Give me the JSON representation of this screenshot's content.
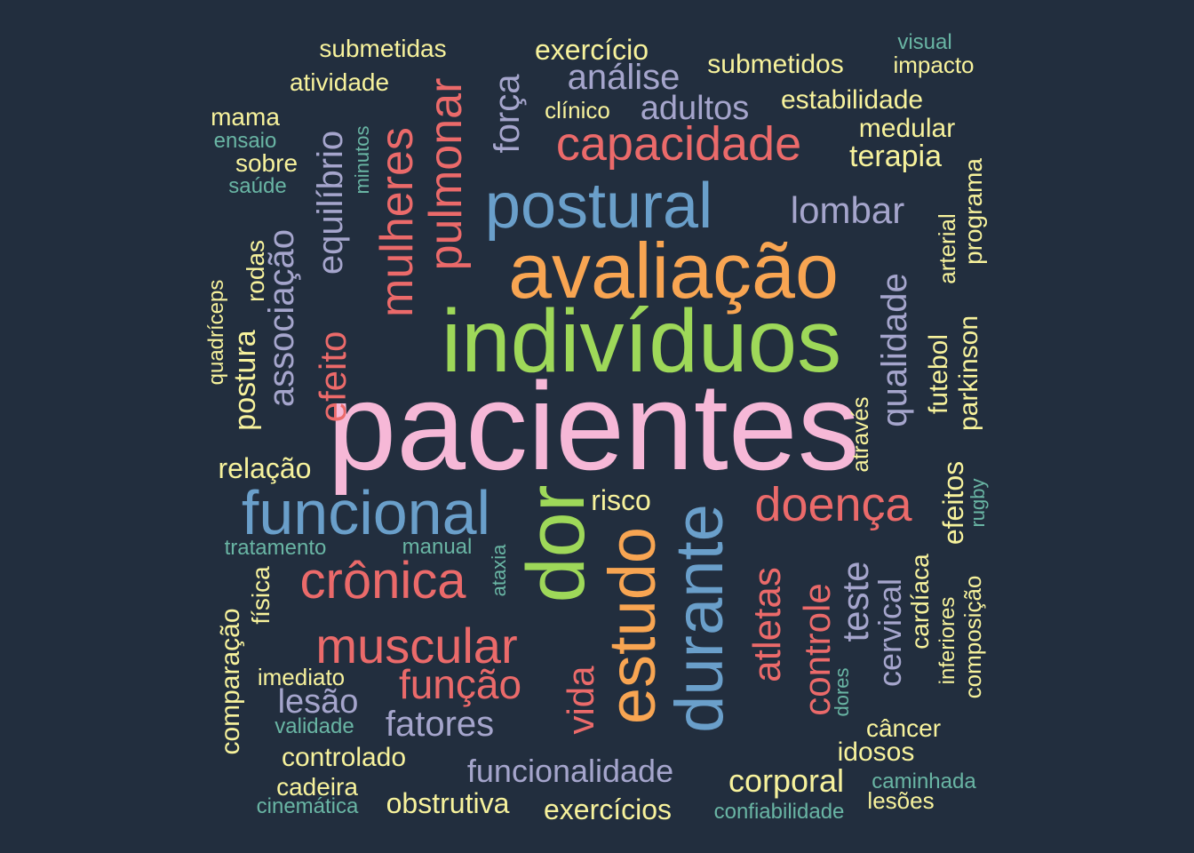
{
  "palette": {
    "background": "#222e3e",
    "pink": "#f6b8d7",
    "green": "#9ed859",
    "orange": "#f8a552",
    "blue": "#6a9fca",
    "red": "#eb6a6a",
    "purple": "#a5a5cc",
    "yellow": "#f7f29c",
    "teal": "#69b5a4"
  },
  "words": [
    "pacientes",
    "indivíduos",
    "avaliação",
    "dor",
    "postural",
    "funcional",
    "durante",
    "estudo",
    "capacidade",
    "mulheres",
    "pulmonar",
    "crônica",
    "muscular",
    "doença",
    "equilíbrio",
    "associação",
    "efeito",
    "função",
    "lombar",
    "qualidade",
    "atletas",
    "controle",
    "vida",
    "teste",
    "força",
    "análise",
    "adultos",
    "fatores",
    "lesão",
    "cervical",
    "funcionalidade",
    "exercício",
    "submetidas",
    "atividade",
    "submetidos",
    "estabilidade",
    "impacto",
    "visual",
    "clínico",
    "mama",
    "ensaio",
    "sobre",
    "saúde",
    "minutos",
    "medular",
    "terapia",
    "programa",
    "arterial",
    "parkinson",
    "futebol",
    "quadríceps",
    "rodas",
    "postura",
    "relação",
    "risco",
    "através",
    "efeitos",
    "rugby",
    "tratamento",
    "manual",
    "ataxia",
    "cardíaca",
    "composição",
    "inferiores",
    "comparação",
    "física",
    "imediato",
    "validade",
    "controlado",
    "cadeira",
    "cinemática",
    "obstrutiva",
    "exercícios",
    "corporal",
    "confiabilidade",
    "caminhada",
    "lesões",
    "câncer",
    "idosos",
    "dores"
  ]
}
